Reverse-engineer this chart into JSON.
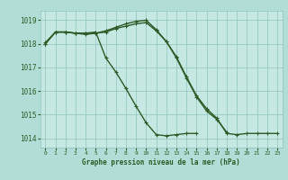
{
  "title": "Graphe pression niveau de la mer (hPa)",
  "background_color": "#b2ddd6",
  "plot_bg_color": "#c5e8e2",
  "grid_color": "#8fc4bc",
  "line_color": "#2d5a27",
  "marker_color": "#2d5a27",
  "xlim": [
    -0.5,
    23.5
  ],
  "ylim": [
    1013.6,
    1019.4
  ],
  "yticks": [
    1014,
    1015,
    1016,
    1017,
    1018,
    1019
  ],
  "xticks": [
    0,
    1,
    2,
    3,
    4,
    5,
    6,
    7,
    8,
    9,
    10,
    11,
    12,
    13,
    14,
    15,
    16,
    17,
    18,
    19,
    20,
    21,
    22,
    23
  ],
  "series1": [
    1018.0,
    1018.5,
    1018.5,
    1018.45,
    1018.45,
    1018.45,
    1018.5,
    1018.65,
    1018.75,
    1018.85,
    1018.9,
    1018.55,
    1018.1,
    1017.45,
    1016.6,
    1015.8,
    1015.25,
    1014.85,
    1014.2,
    1014.15,
    1014.2,
    1014.2,
    1014.2,
    1014.2
  ],
  "series2": [
    1018.0,
    1018.5,
    1018.5,
    1018.45,
    1018.45,
    1018.5,
    1017.4,
    1016.8,
    1016.1,
    1015.35,
    1014.65,
    1014.15,
    1014.1,
    1014.15,
    1014.2,
    1014.2,
    null,
    null,
    null,
    null,
    null,
    null,
    null,
    null
  ],
  "series3": [
    1018.05,
    1018.5,
    1018.5,
    1018.45,
    1018.4,
    1018.45,
    1018.55,
    1018.7,
    1018.85,
    1018.95,
    1019.0,
    1018.6,
    1018.1,
    1017.4,
    1016.55,
    1015.75,
    1015.15,
    1014.8,
    1014.25,
    null,
    null,
    null,
    null,
    null
  ]
}
